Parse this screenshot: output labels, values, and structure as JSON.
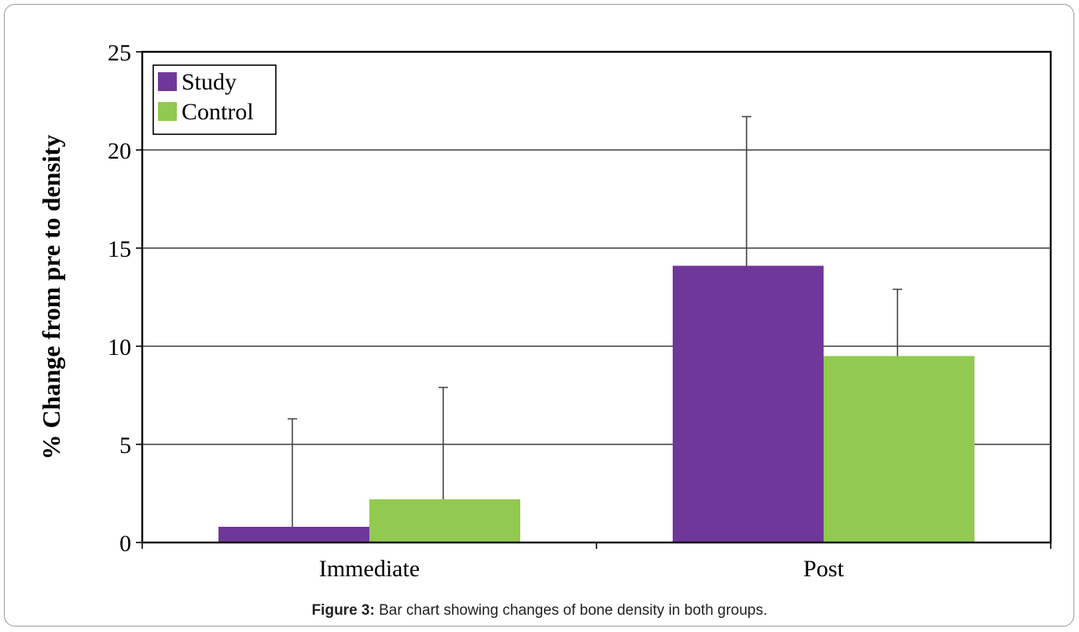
{
  "chart_data": {
    "type": "bar",
    "categories": [
      "Immediate",
      "Post"
    ],
    "series": [
      {
        "name": "Study",
        "values": [
          0.8,
          14.1
        ],
        "error_upper": [
          6.3,
          21.7
        ],
        "color": "#70379a"
      },
      {
        "name": "Control",
        "values": [
          2.2,
          9.5
        ],
        "error_upper": [
          7.9,
          12.9
        ],
        "color": "#92c950"
      }
    ],
    "ylabel": "% Change from pre to density",
    "ylim": [
      0,
      25
    ],
    "yticks": [
      "0",
      "5",
      "10",
      "15",
      "20",
      "25"
    ],
    "grid": true,
    "legend_position": "top-left"
  },
  "caption": {
    "label": "Figure 3:",
    "text": " Bar chart showing changes of bone density in both groups."
  }
}
